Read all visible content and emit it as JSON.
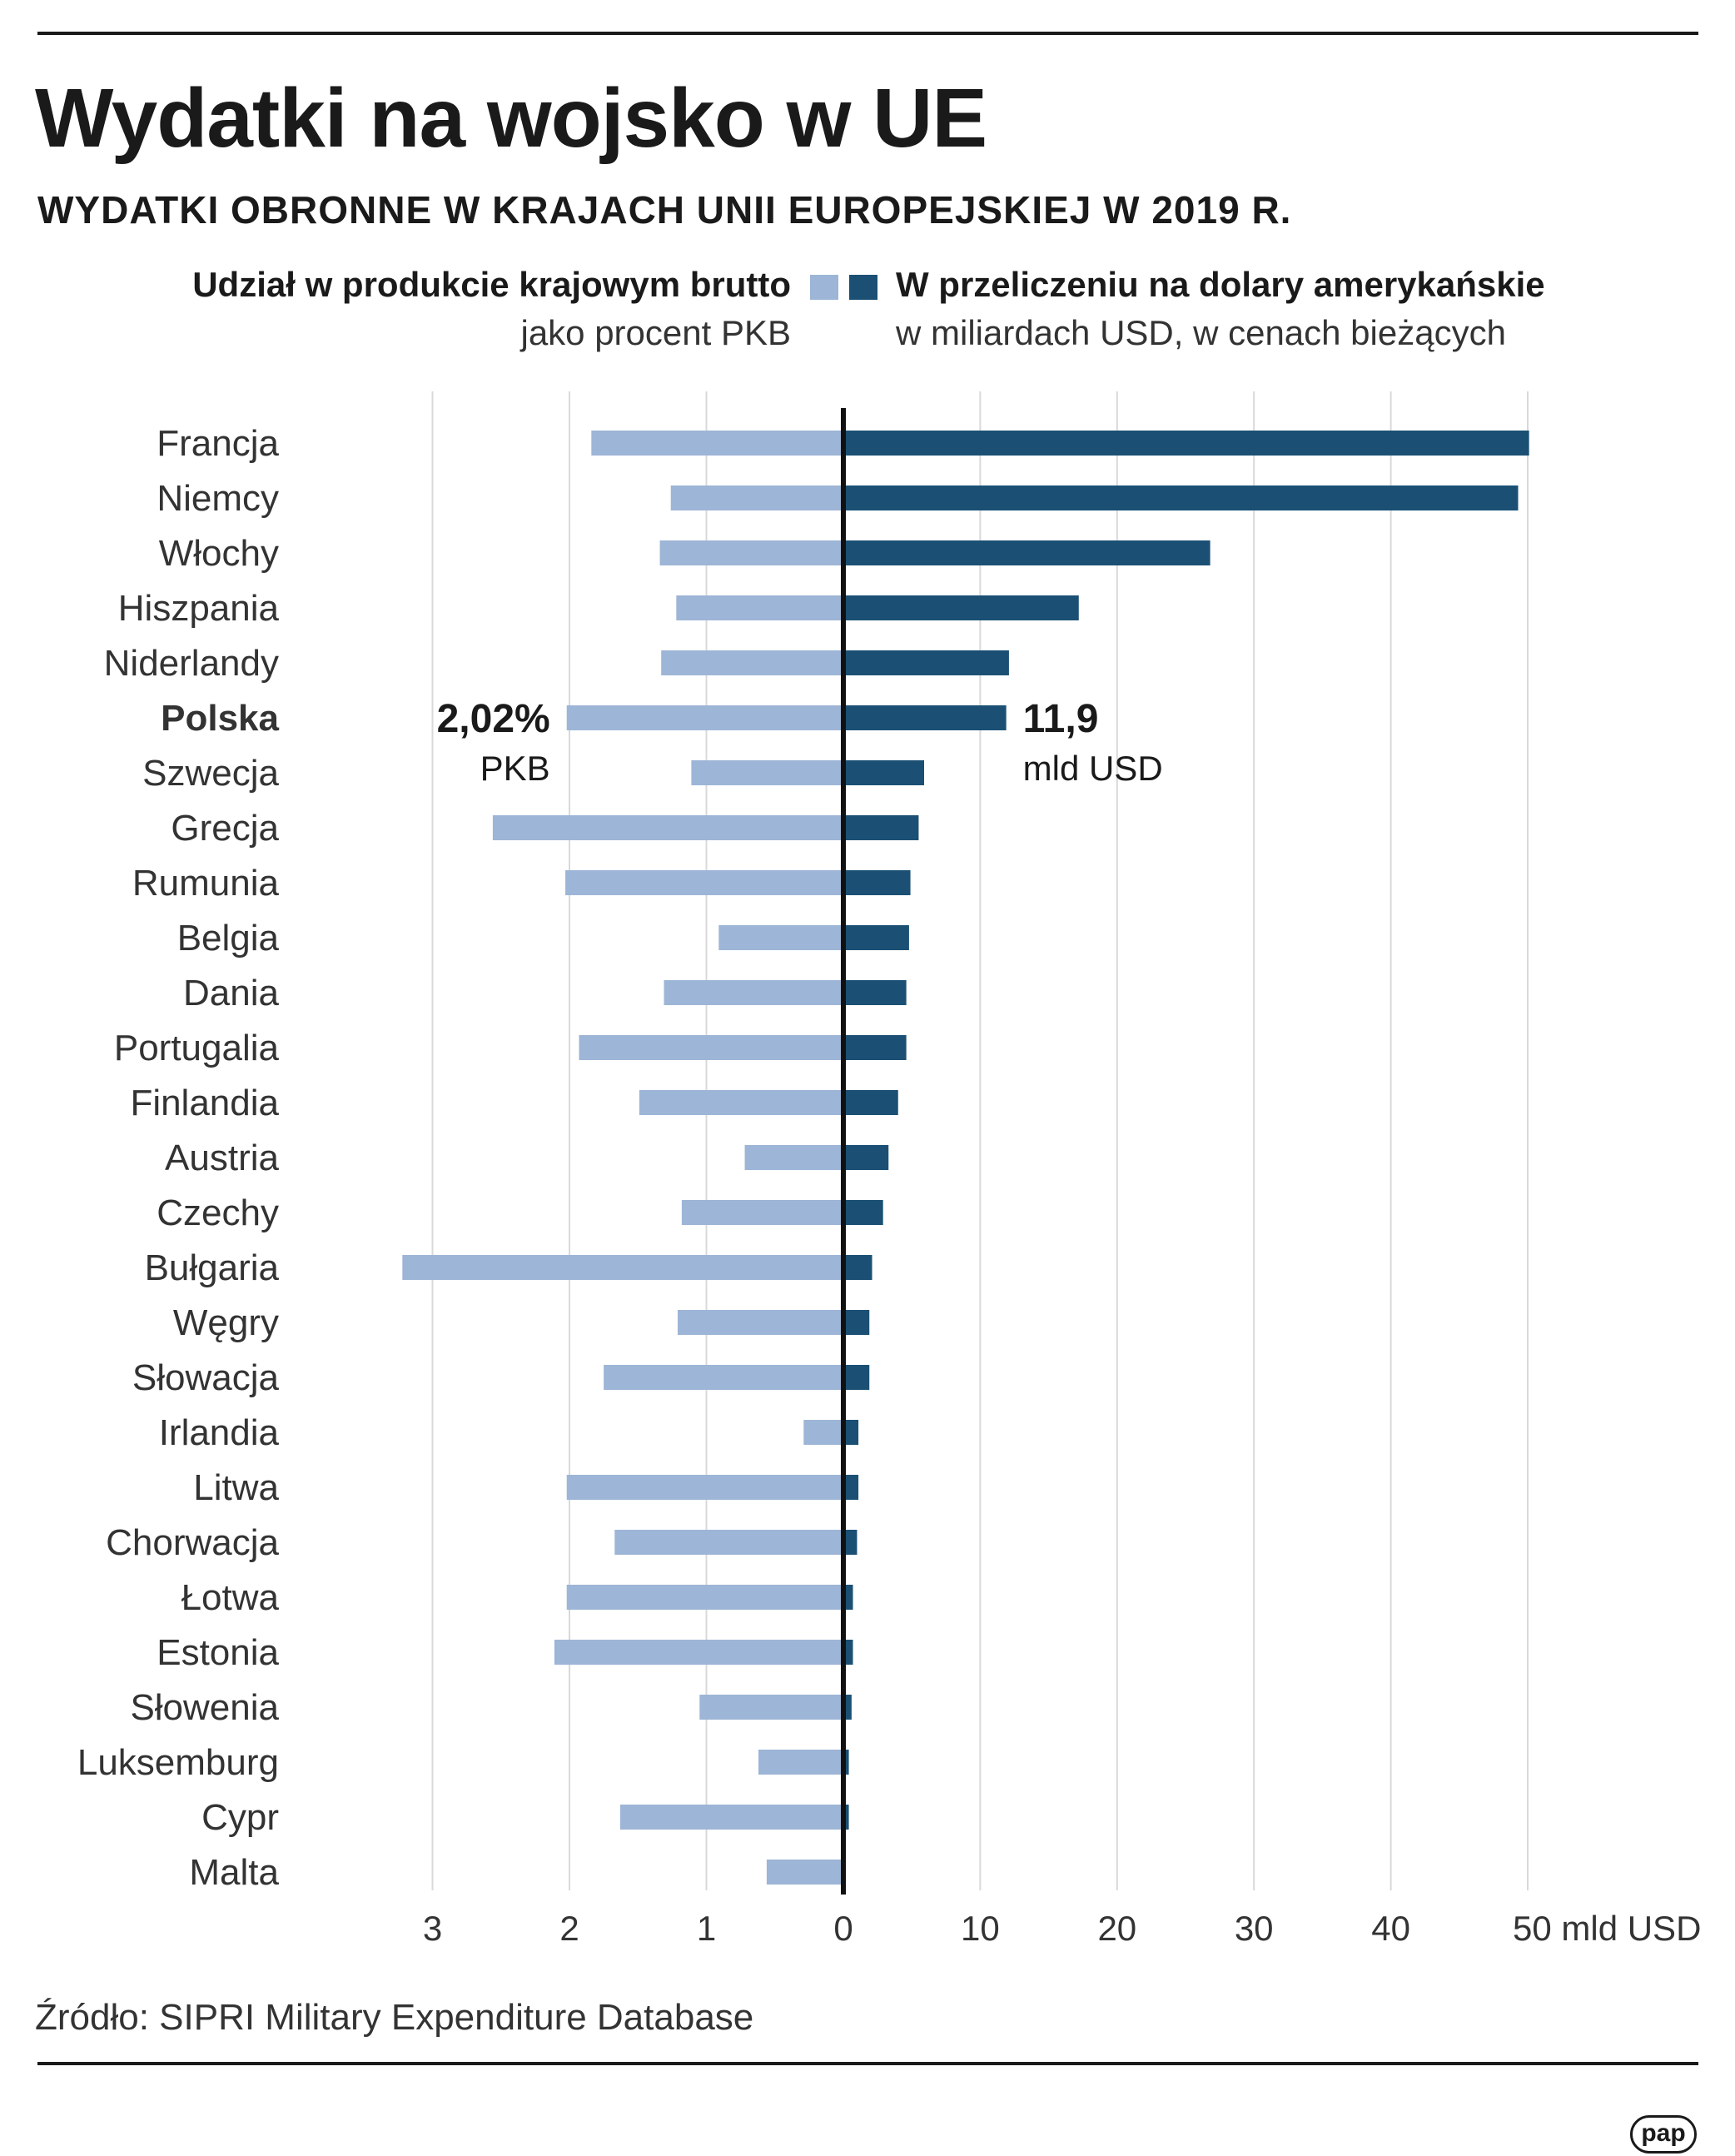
{
  "title": "Wydatki na wojsko w UE",
  "subtitle": "WYDATKI OBRONNE W KRAJACH UNII EUROPEJSKIEJ W 2019 R.",
  "legend": {
    "left_title": "Udział w produkcie krajowym brutto",
    "left_sub": "jako procent PKB",
    "right_title": "W przeliczeniu na dolary amerykańskie",
    "right_sub": "w miliardach USD, w cenach bieżących"
  },
  "colors": {
    "gdp": "#9db5d6",
    "usd": "#1b5074",
    "axis": "#111111",
    "grid": "#d9d9d9"
  },
  "source": "Źródło: SIPRI Military Expenditure Database",
  "logo": "pap",
  "highlight": {
    "country": "Polska",
    "gdp_value": "2,02%",
    "gdp_unit": "PKB",
    "usd_value": "11,9",
    "usd_unit": "mld USD"
  },
  "chart_data": {
    "type": "bar",
    "orientation": "horizontal-butterfly",
    "title": "Wydatki na wojsko w UE",
    "categories": [
      "Francja",
      "Niemcy",
      "Włochy",
      "Hiszpania",
      "Niderlandy",
      "Polska",
      "Szwecja",
      "Grecja",
      "Rumunia",
      "Belgia",
      "Dania",
      "Portugalia",
      "Finlandia",
      "Austria",
      "Czechy",
      "Bułgaria",
      "Węgry",
      "Słowacja",
      "Irlandia",
      "Litwa",
      "Chorwacja",
      "Łotwa",
      "Estonia",
      "Słowenia",
      "Luksemburg",
      "Cypr",
      "Malta"
    ],
    "series": [
      {
        "name": "Udział w produkcie krajowym brutto (% PKB)",
        "side": "left",
        "values": [
          1.84,
          1.26,
          1.34,
          1.22,
          1.33,
          2.02,
          1.11,
          2.56,
          2.03,
          0.91,
          1.31,
          1.93,
          1.49,
          0.72,
          1.18,
          3.22,
          1.21,
          1.75,
          0.29,
          2.02,
          1.67,
          2.02,
          2.11,
          1.05,
          0.62,
          1.63,
          0.56
        ],
        "axis_range": [
          0,
          3.5
        ],
        "ticks": [
          "3",
          "2",
          "1",
          "0"
        ]
      },
      {
        "name": "W przeliczeniu na dolary amerykańskie (mld USD)",
        "side": "right",
        "values": [
          50.1,
          49.3,
          26.8,
          17.2,
          12.1,
          11.9,
          5.9,
          5.5,
          4.9,
          4.8,
          4.6,
          4.6,
          4.0,
          3.3,
          2.9,
          2.1,
          1.9,
          1.9,
          1.1,
          1.1,
          1.0,
          0.7,
          0.7,
          0.6,
          0.4,
          0.4,
          0.1
        ],
        "axis_range": [
          0,
          50
        ],
        "ticks": [
          "10",
          "20",
          "30",
          "40",
          "50 mld USD"
        ]
      }
    ],
    "grid": true,
    "legend_position": "top"
  }
}
